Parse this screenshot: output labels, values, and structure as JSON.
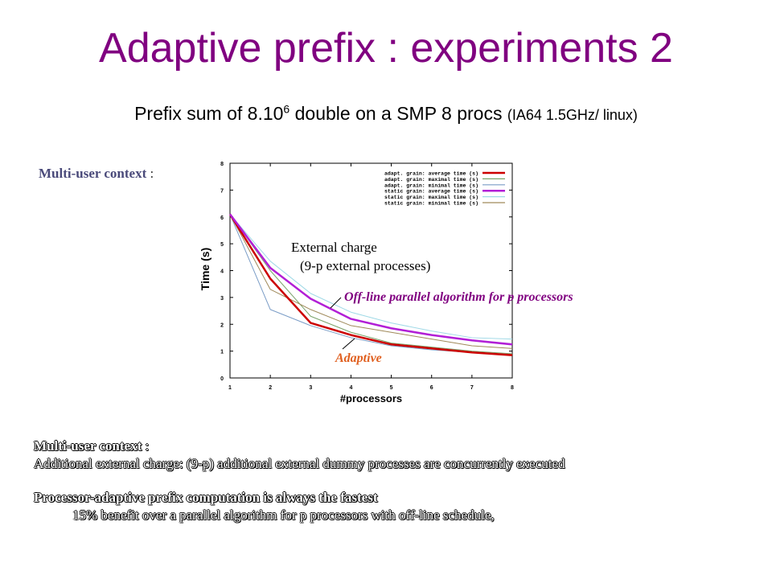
{
  "slide": {
    "title": "Adaptive prefix : experiments 2",
    "subtitle_main": "Prefix sum of 8.10",
    "subtitle_exp": "6",
    "subtitle_rest": " double on a SMP 8 procs ",
    "subtitle_small": "(IA64 1.5GHz/ linux)",
    "context_label": "Multi-user context",
    "context_colon": " :"
  },
  "chart_data": {
    "type": "line",
    "xlabel": "#processors",
    "ylabel": "Time (s)",
    "xlim": [
      1,
      8
    ],
    "ylim": [
      0,
      8
    ],
    "x": [
      1,
      2,
      3,
      4,
      5,
      6,
      7,
      8
    ],
    "xticks": [
      "1",
      "2",
      "3",
      "4",
      "5",
      "6",
      "7",
      "8"
    ],
    "yticks": [
      "0",
      "1",
      "2",
      "3",
      "4",
      "5",
      "6",
      "7",
      "8"
    ],
    "legend_position": "top-right",
    "series": [
      {
        "name": "adapt. grain: average time (s)",
        "color": "#cc0000",
        "width": 2.5,
        "values": [
          6.1,
          3.7,
          2.05,
          1.6,
          1.25,
          1.1,
          0.95,
          0.85
        ]
      },
      {
        "name": "adapt. grain: maximal time (s)",
        "color": "#7aa36a",
        "width": 1,
        "values": [
          6.1,
          4.0,
          2.3,
          1.7,
          1.3,
          1.15,
          1.0,
          0.9
        ]
      },
      {
        "name": "adapt. grain: minimal time (s)",
        "color": "#7a9cc6",
        "width": 1,
        "values": [
          6.1,
          2.55,
          1.95,
          1.5,
          1.2,
          1.05,
          0.95,
          0.85
        ]
      },
      {
        "name": "static grain: average time (s)",
        "color": "#b21fd6",
        "width": 2.5,
        "values": [
          6.1,
          4.1,
          2.95,
          2.2,
          1.85,
          1.6,
          1.4,
          1.25
        ]
      },
      {
        "name": "static grain: maximal time (s)",
        "color": "#9fd9e6",
        "width": 1,
        "values": [
          6.1,
          4.35,
          3.15,
          2.45,
          2.05,
          1.75,
          1.5,
          1.45
        ]
      },
      {
        "name": "static grain: minimal time (s)",
        "color": "#a08a5a",
        "width": 1,
        "values": [
          6.1,
          3.3,
          2.55,
          1.95,
          1.7,
          1.45,
          1.2,
          1.1
        ]
      }
    ],
    "annotations": {
      "external_charge": "External charge",
      "external_processes": "(9-p external processes)",
      "offline": "Off-line parallel algorithm for p processors",
      "adaptive": "Adaptive"
    }
  },
  "notes": {
    "heading": "Multi-user context",
    "heading_colon": " :",
    "line1": "Additional external charge: (9-p) additional external dummy processes are concurrently executed",
    "line2": "Processor-adaptive prefix computation is always the fastest",
    "line3": "15% benefit over a parallel algorithm for p processors with off-line schedule,"
  },
  "colors": {
    "title": "#800080",
    "annotation_offline": "#800080",
    "annotation_adaptive": "#e06020"
  }
}
